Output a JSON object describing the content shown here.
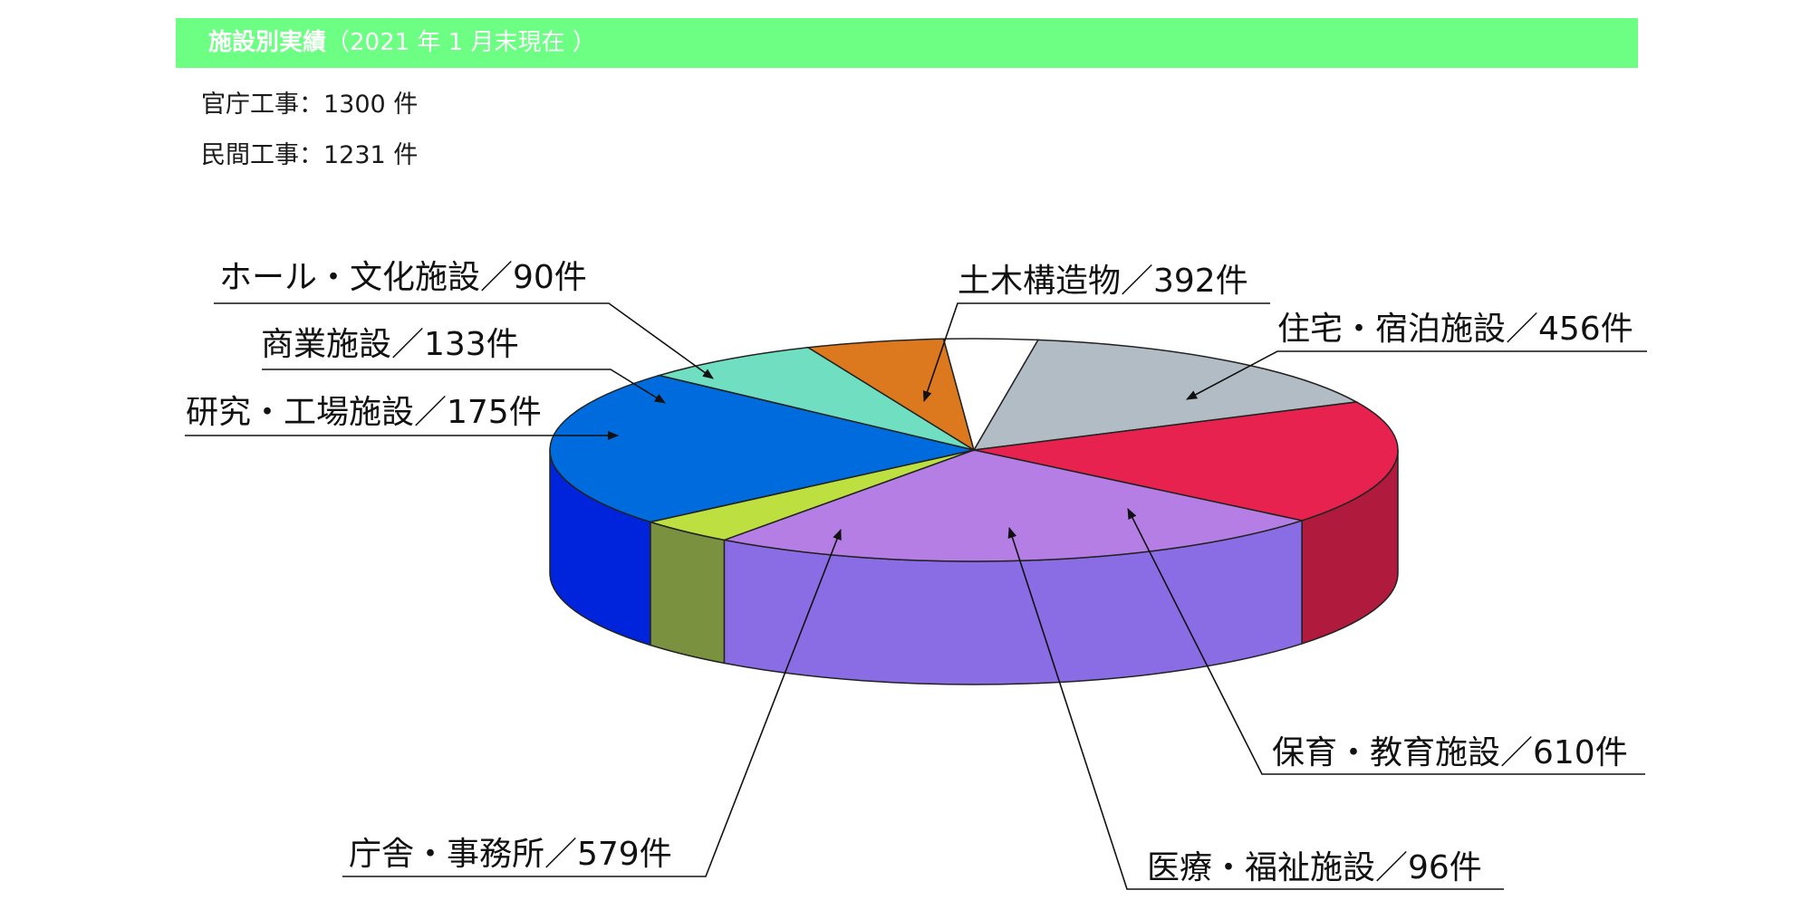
{
  "header": {
    "title": "施設別実績",
    "subtitle": "（2021 年 1 月末現在 ）"
  },
  "stats": {
    "public": "官庁工事：1300 件",
    "private": "民間工事：1231 件"
  },
  "chart_data": {
    "type": "pie",
    "style": "3d",
    "unit": "件",
    "slices": [
      {
        "label": "土木構造物",
        "value": 392,
        "color": "#b1bcc4",
        "side_color": "#8f9aa2",
        "text": "土木構造物／392件"
      },
      {
        "label": "住宅・宿泊施設",
        "value": 456,
        "color": "#e8224f",
        "side_color": "#b01a3c",
        "text": "住宅・宿泊施設／456件"
      },
      {
        "label": "保育・教育施設",
        "value": 610,
        "color": "#b47ee4",
        "side_color": "#8a6de4",
        "text": "保育・教育施設／610件"
      },
      {
        "label": "医療・福祉施設",
        "value": 96,
        "color": "#bde040",
        "side_color": "#7a9140",
        "text": "医療・福祉施設／96件"
      },
      {
        "label": "庁舎・事務所",
        "value": 579,
        "color": "#006bdc",
        "side_color": "#0024dc",
        "text": "庁舎・事務所／579件"
      },
      {
        "label": "研究・工場施設",
        "value": 175,
        "color": "#70dfc1",
        "side_color": "#4fb79b",
        "text": "研究・工場施設／175件"
      },
      {
        "label": "商業施設",
        "value": 133,
        "color": "#dc781e",
        "side_color": "#a85a14",
        "text": "商業施設／133件"
      },
      {
        "label": "ホール・文化施設",
        "value": 90,
        "color": "#ffffff",
        "side_color": "#e6e6e6",
        "text": "ホール・文化施設／90件"
      }
    ]
  }
}
